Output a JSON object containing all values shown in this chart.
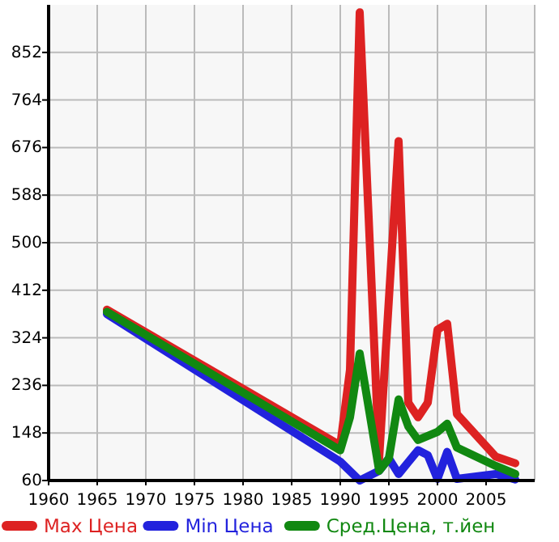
{
  "chart_data": {
    "type": "line",
    "xlim": [
      1960,
      2010
    ],
    "xticks": [
      1960,
      1965,
      1970,
      1975,
      1980,
      1985,
      1990,
      1995,
      2000,
      2005
    ],
    "ylim": [
      60,
      940
    ],
    "yticks": [
      60,
      148,
      236,
      324,
      412,
      500,
      588,
      676,
      764,
      852
    ],
    "grid": true,
    "legend": "bottom",
    "marker": "none",
    "line_style": "solid",
    "series": [
      {
        "name": "Max Цена",
        "color": "#dd2222",
        "x": [
          1966,
          1990,
          1991,
          1992,
          1994,
          1996,
          1997,
          1998,
          1999,
          2000,
          2001,
          2002,
          2006,
          2008
        ],
        "values": [
          376,
          125,
          265,
          926,
          101,
          688,
          204,
          177,
          204,
          339,
          350,
          183,
          104,
          92
        ]
      },
      {
        "name": "Min Цена",
        "color": "#2222dd",
        "x": [
          1966,
          1990,
          1992,
          1994,
          1995,
          1996,
          1998,
          1999,
          2000,
          2001,
          2002,
          2006,
          2008
        ],
        "values": [
          368,
          95,
          60,
          78,
          101,
          72,
          116,
          107,
          63,
          113,
          63,
          72,
          62
        ]
      },
      {
        "name": "Сред.Цена, т.йен",
        "color": "#118811",
        "x": [
          1966,
          1990,
          1991,
          1992,
          1994,
          1995,
          1996,
          1997,
          1998,
          2000,
          2001,
          2002,
          2006,
          2008
        ],
        "values": [
          372,
          116,
          177,
          295,
          78,
          101,
          210,
          160,
          135,
          150,
          165,
          121,
          87,
          72
        ]
      }
    ]
  }
}
